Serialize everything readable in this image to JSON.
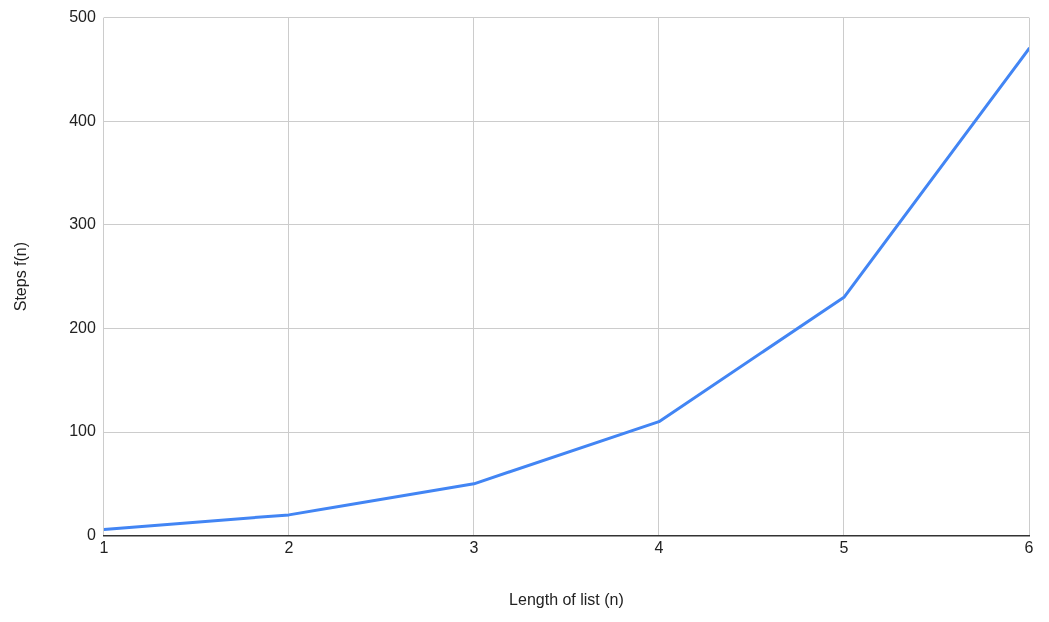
{
  "chart_data": {
    "type": "line",
    "xlabel": "Length of list (n)",
    "ylabel": "Steps f(n)",
    "x": [
      1,
      2,
      3,
      4,
      5,
      6
    ],
    "series": [
      {
        "color": "#4285f4",
        "values": [
          6,
          20,
          50,
          110,
          230,
          470
        ]
      }
    ],
    "xlim": [
      1,
      6
    ],
    "xticks": [
      1,
      2,
      3,
      4,
      5,
      6
    ],
    "ylim": [
      0,
      500
    ],
    "yticks": [
      0,
      100,
      200,
      300,
      400,
      500
    ],
    "grid": true,
    "legend": false,
    "marker": "none",
    "line_style": "solid"
  }
}
